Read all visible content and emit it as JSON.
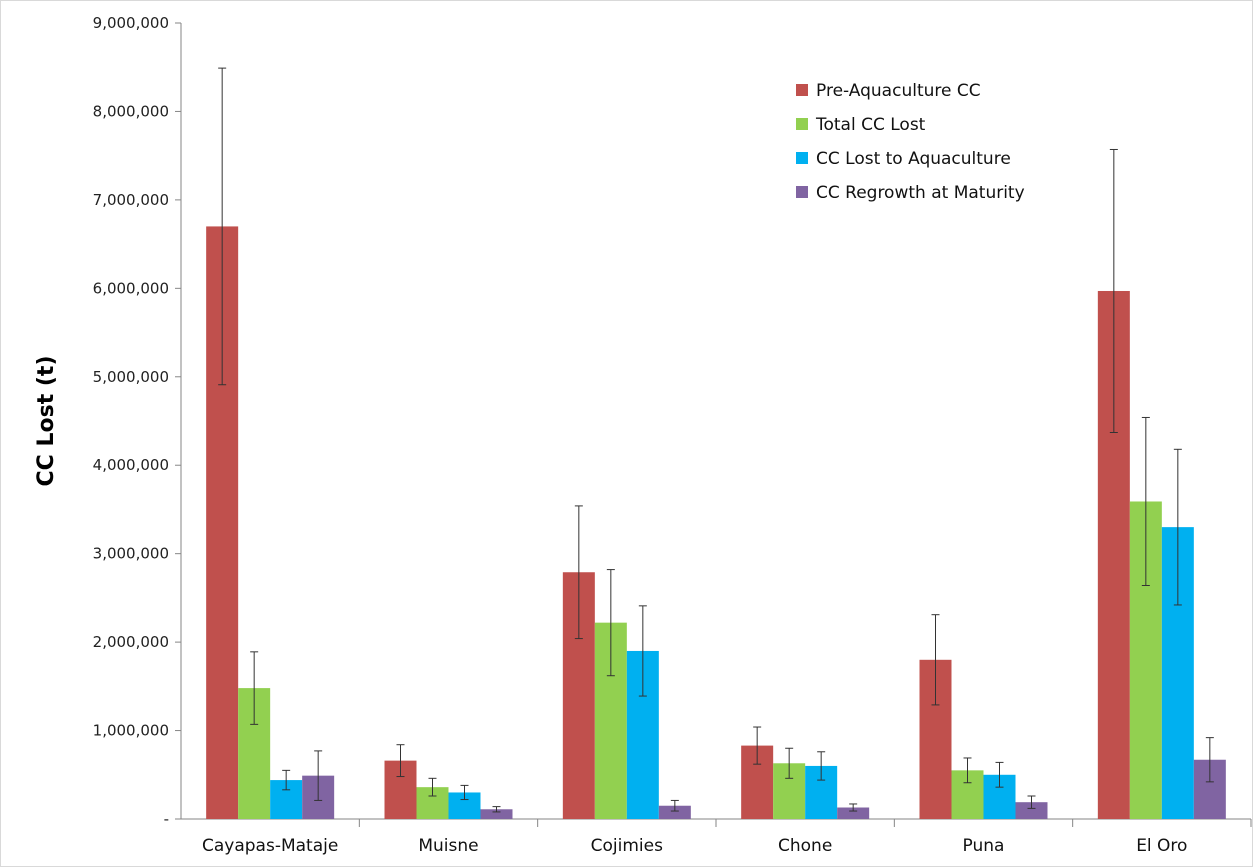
{
  "chart_data": {
    "type": "bar",
    "title": "",
    "xlabel": "",
    "ylabel": "CC Lost (t)",
    "ylim": [
      0,
      9000000
    ],
    "ytick_values": [
      0,
      1000000,
      2000000,
      3000000,
      4000000,
      5000000,
      6000000,
      7000000,
      8000000,
      9000000
    ],
    "ytick_labels": [
      "-",
      "1,000,000",
      "2,000,000",
      "3,000,000",
      "4,000,000",
      "5,000,000",
      "6,000,000",
      "7,000,000",
      "8,000,000",
      "9,000,000"
    ],
    "categories": [
      "Cayapas-Mataje",
      "Muisne",
      "Cojimies",
      "Chone",
      "Puna",
      "El Oro"
    ],
    "legend_position": "top-right",
    "grid": false,
    "series": [
      {
        "name": "Pre-Aquaculture CC",
        "color": "#c0504d",
        "values": [
          6700000,
          660000,
          2790000,
          830000,
          1800000,
          5970000
        ],
        "error": [
          1790000,
          180000,
          750000,
          210000,
          510000,
          1600000
        ]
      },
      {
        "name": "Total CC Lost",
        "color": "#92d050",
        "values": [
          1480000,
          360000,
          2220000,
          630000,
          550000,
          3590000
        ],
        "error": [
          410000,
          100000,
          600000,
          170000,
          140000,
          950000
        ]
      },
      {
        "name": "CC Lost to Aquaculture",
        "color": "#00b0f0",
        "values": [
          440000,
          300000,
          1900000,
          600000,
          500000,
          3300000
        ],
        "error": [
          110000,
          80000,
          510000,
          160000,
          140000,
          880000
        ]
      },
      {
        "name": "CC Regrowth at Maturity",
        "color": "#8064a2",
        "values": [
          490000,
          110000,
          150000,
          130000,
          190000,
          670000
        ],
        "error": [
          280000,
          30000,
          60000,
          40000,
          70000,
          250000
        ]
      }
    ]
  }
}
